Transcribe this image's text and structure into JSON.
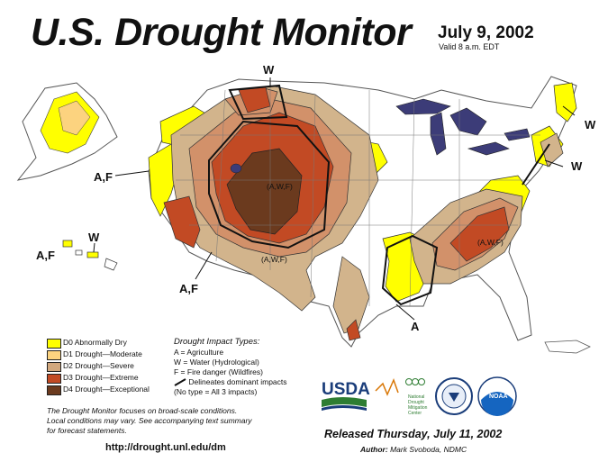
{
  "header": {
    "title": "U.S. Drought Monitor",
    "date": "July 9, 2002",
    "valid": "Valid 8 a.m. EDT"
  },
  "map_labels": {
    "w_north": "W",
    "af_west": "A,F",
    "af_hawaii": "A,F",
    "w_hawaii": "W",
    "af_southwest": "A,F",
    "awf_rockies": "(A,W,F)",
    "awf_southwest": "(A,W,F)",
    "awf_southeast": "(A,W,F)",
    "a_gulf": "A",
    "w_maine": "W",
    "w_midatlantic": "W"
  },
  "legend": {
    "items": [
      {
        "label": "D0 Abnormally Dry",
        "color": "#ffff00"
      },
      {
        "label": "D1 Drought—Moderate",
        "color": "#fcd37f"
      },
      {
        "label": "D2 Drought—Severe",
        "color": "#d2a87e"
      },
      {
        "label": "D3 Drought—Extreme",
        "color": "#c24a24"
      },
      {
        "label": "D4 Drought—Exceptional",
        "color": "#6b3a1e"
      }
    ]
  },
  "impact_types": {
    "title": "Drought  Impact  Types:",
    "lines": [
      "A = Agriculture",
      "W = Water (Hydrological)",
      "F = Fire danger (Wildfires)",
      "Delineates dominant impacts",
      "(No type = All 3 impacts)"
    ]
  },
  "note": {
    "line1": "The Drought Monitor focuses on broad-scale conditions.",
    "line2": "Local conditions may vary. See accompanying text summary",
    "line3": "for forecast statements."
  },
  "url": "http://drought.unl.edu/dm",
  "released": "Released Thursday, July 11, 2002",
  "author_label": "Author:",
  "author_name": "Mark Svoboda, NDMC",
  "logos": {
    "usda": "USDA",
    "ndmc_line1": "National",
    "ndmc_line2": "Drought",
    "ndmc_line3": "Mitigation",
    "ndmc_line4": "Center",
    "noaa": "NOAA"
  }
}
